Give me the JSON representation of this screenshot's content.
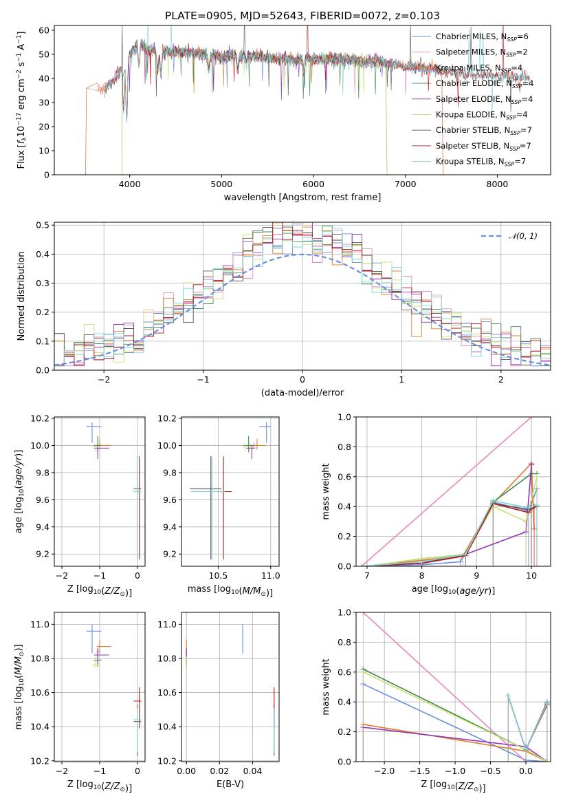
{
  "figure_title": "PLATE=0905, MJD=52643, FIBERID=0072, z=0.103",
  "colors": {
    "chabrier_miles": "#6a8fe0",
    "salpeter_miles": "#e887bd",
    "kroupa_miles": "#e07b2a",
    "chabrier_elodie": "#3f8a4e",
    "salpeter_elodie": "#9235b8",
    "kroupa_elodie": "#c8e070",
    "chabrier_stelib": "#555555",
    "salpeter_stelib": "#b81818",
    "kroupa_stelib": "#7fd0d8",
    "gaussian": "#6a8fe0"
  },
  "chart_data": [
    {
      "id": "spectrum",
      "type": "line",
      "title": "PLATE=0905, MJD=52643, FIBERID=0072, z=0.103",
      "xlabel": "wavelength [Angstrom, rest frame]",
      "ylabel": "Flux [f_λ 10^-17 erg cm^-2 s^-1 A^-1]",
      "xlim": [
        3180,
        8580
      ],
      "ylim": [
        0,
        62
      ],
      "xticks": [
        4000,
        5000,
        6000,
        7000,
        8000
      ],
      "yticks": [
        0,
        10,
        20,
        30,
        40,
        50,
        60
      ],
      "grid": false,
      "legend_position": "right",
      "series": [
        {
          "name": "Chabrier MILES, N_SSP=6",
          "legend": [
            "Chabrier MILES, N",
            "SSP",
            "=6"
          ],
          "color": "#6a8fe0",
          "x_range": [
            3700,
            7400
          ]
        },
        {
          "name": "Salpeter MILES, N_SSP=2",
          "legend": [
            "Salpeter MILES, N",
            "SSP",
            "=2"
          ],
          "color": "#e887bd",
          "x_range": [
            3500,
            7420
          ]
        },
        {
          "name": "Kroupa MILES, N_SSP=4",
          "legend": [
            "Kroupa MILES, N",
            "SSP",
            "=4"
          ],
          "color": "#e07b2a",
          "x_range": [
            3500,
            7420
          ]
        },
        {
          "name": "Chabrier ELODIE, N_SSP=4",
          "legend": [
            "Chabrier ELODIE, N",
            "SSP",
            "=4"
          ],
          "color": "#3f8a4e",
          "x_range": [
            3900,
            6800
          ]
        },
        {
          "name": "Salpeter ELODIE, N_SSP=4",
          "legend": [
            "Salpeter ELODIE, N",
            "SSP",
            "=4"
          ],
          "color": "#9235b8",
          "x_range": [
            3900,
            6800
          ]
        },
        {
          "name": "Kroupa ELODIE, N_SSP=4",
          "legend": [
            "Kroupa ELODIE, N",
            "SSP",
            "=4"
          ],
          "color": "#c8e070",
          "x_range": [
            3900,
            6800
          ]
        },
        {
          "name": "Chabrier STELIB, N_SSP=7",
          "legend": [
            "Chabrier STELIB, N",
            "SSP",
            "=7"
          ],
          "color": "#555555",
          "x_range": [
            3700,
            8350
          ]
        },
        {
          "name": "Salpeter STELIB, N_SSP=7",
          "legend": [
            "Salpeter STELIB, N",
            "SSP",
            "=7"
          ],
          "color": "#b81818",
          "x_range": [
            3700,
            8350
          ]
        },
        {
          "name": "Kroupa STELIB, N_SSP=7",
          "legend": [
            "Kroupa STELIB, N",
            "SSP",
            "=7"
          ],
          "color": "#7fd0d8",
          "x_range": [
            3700,
            8350
          ]
        }
      ],
      "continuum": [
        [
          3650,
          37
        ],
        [
          3700,
          35
        ],
        [
          3800,
          38
        ],
        [
          3900,
          43
        ],
        [
          4000,
          50
        ],
        [
          4100,
          55
        ],
        [
          4200,
          52
        ],
        [
          4400,
          51
        ],
        [
          4600,
          51
        ],
        [
          4800,
          50
        ],
        [
          5000,
          49
        ],
        [
          5200,
          50
        ],
        [
          5400,
          49
        ],
        [
          5700,
          48
        ],
        [
          6000,
          48
        ],
        [
          6300,
          48
        ],
        [
          6500,
          47
        ],
        [
          6700,
          47
        ],
        [
          7000,
          45
        ],
        [
          7300,
          44
        ],
        [
          7600,
          42
        ],
        [
          8000,
          41
        ],
        [
          8350,
          40
        ]
      ],
      "absorption_lines": [
        [
          3933,
          18
        ],
        [
          3968,
          25
        ],
        [
          4101,
          10
        ],
        [
          4305,
          8
        ],
        [
          4340,
          10
        ],
        [
          4861,
          6
        ],
        [
          5175,
          6
        ],
        [
          5270,
          3
        ],
        [
          5893,
          6
        ]
      ]
    },
    {
      "id": "residuals",
      "type": "histogram",
      "xlabel": "(data-model)/error",
      "ylabel": "Normed distribution",
      "xlim": [
        -2.5,
        2.5
      ],
      "ylim": [
        0,
        0.51
      ],
      "xticks": [
        -2,
        -1,
        0,
        1,
        2
      ],
      "yticks": [
        0.0,
        0.1,
        0.2,
        0.3,
        0.4,
        0.5
      ],
      "grid": true,
      "legend_position": "top-right",
      "legend_label": "𝒩(0, 1)",
      "bin_width": 0.1
    },
    {
      "id": "age_vs_Z",
      "type": "errorbar",
      "xlabel": "Z [log10(Z/Z⊙)]",
      "ylabel": "age [log10(age/yr)]",
      "xlim": [
        -2.2,
        0.2
      ],
      "ylim": [
        9.11,
        10.21
      ],
      "xticks": [
        -2,
        -1,
        0
      ],
      "yticks": [
        9.2,
        9.4,
        9.6,
        9.8,
        10.0,
        10.2
      ],
      "grid": true
    },
    {
      "id": "age_vs_mass",
      "type": "errorbar",
      "xlabel": "mass [log10(M/M⊙)]",
      "ylabel": "",
      "xlim": [
        10.15,
        11.08
      ],
      "ylim": [
        9.11,
        10.21
      ],
      "xticks": [
        10.5,
        11.0
      ],
      "yticks": [
        9.2,
        9.4,
        9.6,
        9.8,
        10.0,
        10.2
      ],
      "grid": true
    },
    {
      "id": "mass_weight_vs_age",
      "type": "line",
      "xlabel": "age [log10(age/yr)]",
      "ylabel": "mass weight",
      "xlim": [
        6.8,
        10.35
      ],
      "ylim": [
        0,
        1
      ],
      "xticks": [
        7,
        8,
        9,
        10
      ],
      "yticks": [
        0.0,
        0.2,
        0.4,
        0.6,
        0.8,
        1.0
      ],
      "grid": true
    },
    {
      "id": "mass_vs_Z",
      "type": "errorbar",
      "xlabel": "Z [log10(Z/Z⊙)]",
      "ylabel": "mass [log10(M/M⊙)]",
      "xlim": [
        -2.2,
        0.2
      ],
      "ylim": [
        10.195,
        11.07
      ],
      "xticks": [
        -2,
        -1,
        0
      ],
      "yticks": [
        10.2,
        10.4,
        10.6,
        10.8,
        11.0
      ],
      "grid": true
    },
    {
      "id": "mass_vs_ebv",
      "type": "errorbar",
      "xlabel": "E(B-V)",
      "ylabel": "",
      "xlim": [
        -0.003,
        0.056
      ],
      "ylim": [
        10.195,
        11.07
      ],
      "xticks": [
        0.0,
        0.02,
        0.04
      ],
      "yticks": [
        10.2,
        10.4,
        10.6,
        10.8,
        11.0
      ],
      "grid": true
    },
    {
      "id": "mass_weight_vs_Z",
      "type": "line",
      "xlabel": "Z [log10(Z/Z⊙)]",
      "ylabel": "mass weight",
      "xlim": [
        -2.4,
        0.35
      ],
      "ylim": [
        0,
        1
      ],
      "xticks": [
        -2.0,
        -1.5,
        -1.0,
        -0.5,
        0.0
      ],
      "yticks": [
        0.0,
        0.2,
        0.4,
        0.6,
        0.8,
        1.0
      ],
      "grid": true
    }
  ],
  "fits": [
    {
      "name": "Chabrier MILES",
      "color": "#6a8fe0",
      "Z": -1.2,
      "Z_err": [
        0.15,
        0.25
      ],
      "age": 10.14,
      "age_err": [
        0.12,
        0.03
      ],
      "mass": 10.96,
      "mass_err": [
        0.07,
        0.04
      ],
      "mass_err_m": [
        0.13,
        0.04
      ],
      "ebv": 0.034,
      "ssp_age": [
        [
          7.0,
          0.0
        ],
        [
          8.0,
          0.01
        ],
        [
          8.7,
          0.03
        ],
        [
          9.3,
          0.43
        ],
        [
          9.95,
          0.37
        ],
        [
          10.1,
          0.52
        ]
      ],
      "ssp_Z": [
        [
          -2.3,
          0.52
        ],
        [
          0.0,
          0.01
        ],
        [
          0.3,
          0.0
        ]
      ]
    },
    {
      "name": "Salpeter MILES",
      "color": "#e887bd",
      "Z": -1.05,
      "Z_err": [
        0.05,
        0.05
      ],
      "age": 10.0,
      "age_err": [
        0.02,
        0.02
      ],
      "mass": 10.84,
      "mass_err": [
        0.02,
        0.02
      ],
      "mass_err_m": [
        0.02,
        0.02
      ],
      "ebv": 0.0,
      "ssp_age": [
        [
          6.9,
          0.0
        ],
        [
          10.0,
          1.0
        ]
      ],
      "ssp_Z": [
        [
          -2.3,
          1.0
        ],
        [
          0.0,
          0.0
        ]
      ]
    },
    {
      "name": "Kroupa MILES",
      "color": "#e07b2a",
      "Z": -1.0,
      "Z_err": [
        0.08,
        0.3
      ],
      "age": 10.0,
      "age_err": [
        0.03,
        0.05
      ],
      "mass": 10.87,
      "mass_err": [
        0.03,
        0.08
      ],
      "mass_err_m": [
        0.04,
        0.04
      ],
      "ebv": 0.0,
      "ssp_age": [
        [
          7.0,
          0.0
        ],
        [
          8.0,
          0.04
        ],
        [
          8.75,
          0.07
        ],
        [
          9.3,
          0.42
        ],
        [
          10.0,
          0.69
        ],
        [
          10.05,
          0.25
        ]
      ],
      "ssp_Z": [
        [
          -2.3,
          0.25
        ],
        [
          0.0,
          0.07
        ],
        [
          0.3,
          0.0
        ]
      ]
    },
    {
      "name": "Chabrier ELODIE",
      "color": "#3f8a4e",
      "Z": -1.05,
      "Z_err": [
        0.1,
        0.1
      ],
      "age": 10.0,
      "age_err": [
        0.05,
        0.07
      ],
      "mass": 10.79,
      "mass_err": [
        0.05,
        0.05
      ],
      "mass_err_m": [
        0.04,
        0.05
      ],
      "ebv": 0.0,
      "ssp_age": [
        [
          7.0,
          0.0
        ],
        [
          8.0,
          0.05
        ],
        [
          8.8,
          0.08
        ],
        [
          9.3,
          0.43
        ],
        [
          10.0,
          0.62
        ],
        [
          10.1,
          0.62
        ]
      ],
      "ssp_Z": [
        [
          -2.3,
          0.62
        ],
        [
          0.0,
          0.08
        ],
        [
          0.3,
          0.0
        ]
      ]
    },
    {
      "name": "Salpeter ELODIE",
      "color": "#9235b8",
      "Z": -1.05,
      "Z_err": [
        0.1,
        0.3
      ],
      "age": 9.98,
      "age_err": [
        0.08,
        0.02
      ],
      "mass": 10.82,
      "mass_err": [
        0.05,
        0.03
      ],
      "mass_err_m": [
        0.05,
        0.04
      ],
      "ebv": 0.0,
      "ssp_age": [
        [
          7.0,
          0.0
        ],
        [
          8.0,
          0.03
        ],
        [
          8.8,
          0.08
        ],
        [
          9.9,
          0.23
        ],
        [
          10.0,
          0.68
        ]
      ],
      "ssp_Z": [
        [
          -2.3,
          0.23
        ],
        [
          0.0,
          0.1
        ],
        [
          0.3,
          0.0
        ]
      ]
    },
    {
      "name": "Kroupa ELODIE",
      "color": "#c8e070",
      "Z": -1.1,
      "Z_err": [
        0.1,
        0.1
      ],
      "age": 9.99,
      "age_err": [
        0.03,
        0.02
      ],
      "mass": 10.76,
      "mass_err": [
        0.02,
        0.08
      ],
      "mass_err_m": [
        0.01,
        0.05
      ],
      "ebv": 0.0,
      "ssp_age": [
        [
          7.0,
          0.0
        ],
        [
          8.0,
          0.05
        ],
        [
          8.8,
          0.08
        ],
        [
          9.3,
          0.4
        ],
        [
          9.9,
          0.3
        ],
        [
          10.1,
          0.6
        ]
      ],
      "ssp_Z": [
        [
          -2.3,
          0.6
        ],
        [
          0.0,
          0.08
        ],
        [
          0.3,
          0.0
        ]
      ]
    },
    {
      "name": "Chabrier STELIB",
      "color": "#555555",
      "Z": 0.0,
      "Z_err": [
        0.1,
        0.1
      ],
      "age": 9.68,
      "age_err": [
        0.52,
        0.24
      ],
      "mass": 10.43,
      "mass_err": [
        0.2,
        0.1
      ],
      "mass_err_m": [
        0.2,
        0.1
      ],
      "ebv": 0.053,
      "ssp_age": [
        [
          6.9,
          0.0
        ],
        [
          8.0,
          0.02
        ],
        [
          8.8,
          0.08
        ],
        [
          9.3,
          0.42
        ],
        [
          9.95,
          0.38
        ],
        [
          10.1,
          0.4
        ]
      ],
      "ssp_Z": [
        [
          -0.25,
          0.44
        ],
        [
          0.0,
          0.08
        ],
        [
          0.3,
          0.4
        ]
      ]
    },
    {
      "name": "Salpeter STELIB",
      "color": "#b81818",
      "Z": 0.05,
      "Z_err": [
        0.15,
        0.05
      ],
      "age": 9.66,
      "age_err": [
        0.5,
        0.26
      ],
      "mass": 10.55,
      "mass_err": [
        0.16,
        0.08
      ],
      "mass_err_m": [
        0.16,
        0.08
      ],
      "ebv": 0.053,
      "ssp_age": [
        [
          6.9,
          0.0
        ],
        [
          8.0,
          0.02
        ],
        [
          8.8,
          0.07
        ],
        [
          9.3,
          0.42
        ],
        [
          9.95,
          0.36
        ],
        [
          10.05,
          0.4
        ]
      ],
      "ssp_Z": [
        [
          -0.25,
          0.44
        ],
        [
          0.0,
          0.08
        ],
        [
          0.3,
          0.38
        ]
      ]
    },
    {
      "name": "Kroupa STELIB",
      "color": "#7fd0d8",
      "Z": 0.0,
      "Z_err": [
        0.1,
        0.1
      ],
      "age": 9.66,
      "age_err": [
        0.5,
        0.26
      ],
      "mass": 10.44,
      "mass_err": [
        0.2,
        0.12
      ],
      "mass_err_m": [
        0.19,
        0.07
      ],
      "ebv": 0.053,
      "ssp_age": [
        [
          6.9,
          0.0
        ],
        [
          8.0,
          0.03
        ],
        [
          8.8,
          0.08
        ],
        [
          9.3,
          0.44
        ],
        [
          9.95,
          0.39
        ],
        [
          10.1,
          0.41
        ]
      ],
      "ssp_Z": [
        [
          -0.25,
          0.44
        ],
        [
          0.0,
          0.08
        ],
        [
          0.3,
          0.39
        ]
      ]
    }
  ]
}
